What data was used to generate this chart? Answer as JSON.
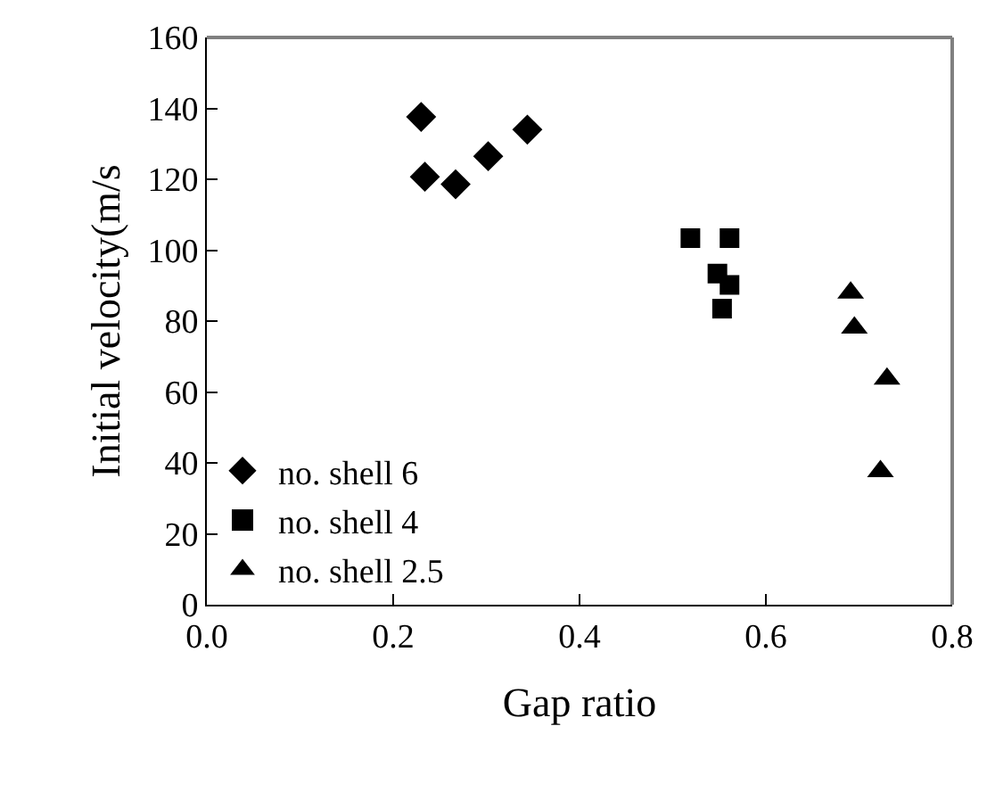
{
  "chart_data": {
    "type": "scatter",
    "xlabel": "Gap ratio",
    "ylabel": "Initial velocity(m/s",
    "xlim": [
      0,
      0.8
    ],
    "xticks": [
      {
        "value": 0,
        "label": "0.0"
      },
      0.2,
      0.4,
      0.6,
      0.8
    ],
    "ylim": [
      0,
      160
    ],
    "yticks": [
      0,
      20,
      40,
      60,
      80,
      100,
      120,
      140,
      160
    ],
    "legend": "bottom left",
    "series": [
      {
        "name": "no. shell 6",
        "color": "#000000",
        "marker": "diamond",
        "x": [
          0.23,
          0.234,
          0.267,
          0.302,
          0.344
        ],
        "values": [
          137.6,
          120.7,
          118.6,
          126.5,
          134
        ]
      },
      {
        "name": "no. shell 4",
        "color": "#000000",
        "marker": "square",
        "x": [
          0.519,
          0.561,
          0.548,
          0.561,
          0.553
        ],
        "values": [
          103.4,
          103.4,
          93.4,
          90.2,
          83.5
        ]
      },
      {
        "name": "no. shell 2.5",
        "color": "#000000",
        "marker": "triangle",
        "x": [
          0.691,
          0.695,
          0.73,
          0.723
        ],
        "values": [
          88,
          78.1,
          63.7,
          37.6
        ]
      }
    ]
  }
}
